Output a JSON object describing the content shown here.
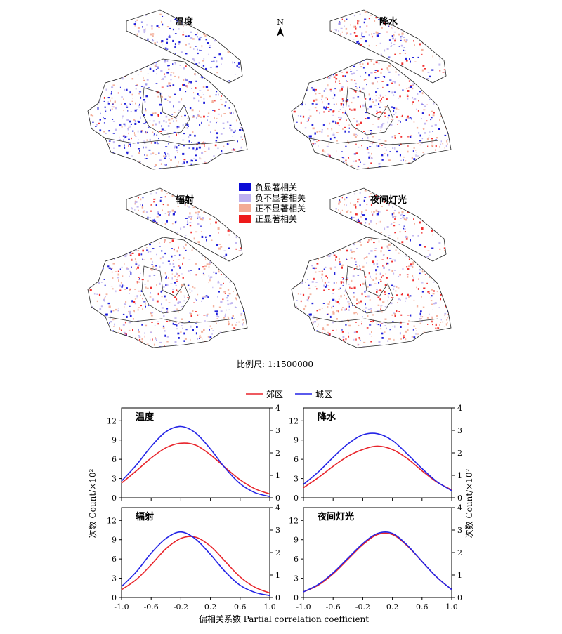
{
  "maps": {
    "panels": [
      {
        "title": "温度",
        "palette": [
          0.42,
          0.3,
          0.22,
          0.06
        ]
      },
      {
        "title": "降水",
        "palette": [
          0.26,
          0.24,
          0.26,
          0.24
        ]
      },
      {
        "title": "辐射",
        "palette": [
          0.22,
          0.28,
          0.36,
          0.14
        ]
      },
      {
        "title": "夜间灯光",
        "palette": [
          0.14,
          0.24,
          0.34,
          0.28
        ]
      }
    ],
    "north": "N",
    "legend": [
      {
        "label": "负显著相关",
        "color": "#0b0bd6"
      },
      {
        "label": "负不显著相关",
        "color": "#bdb0ef"
      },
      {
        "label": "正不显著相关",
        "color": "#f3ab95"
      },
      {
        "label": "正显著相关",
        "color": "#ee1a1a"
      }
    ],
    "scale": "比例尺: 1:1500000"
  },
  "chart_data": {
    "type": "line",
    "legend": [
      {
        "name": "郊区",
        "color": "#e8242b"
      },
      {
        "name": "城区",
        "color": "#2424e6"
      }
    ],
    "xlabel": "偏相关系数 Partial correlation coefficient",
    "ylabel_left": "次数 Count/×10²",
    "ylabel_right": "次数 Count/×10²",
    "x_ticks": [
      "-1.0",
      "-0.6",
      "-0.2",
      "0.2",
      "0.6",
      "1.0"
    ],
    "xlim": [
      -1.0,
      1.0
    ],
    "panels": [
      {
        "title": "温度",
        "ylim_left": [
          0,
          14
        ],
        "left_ticks": [
          "0",
          "3",
          "6",
          "9",
          "12"
        ],
        "ylim_right": [
          0,
          4
        ],
        "right_ticks": [
          "0",
          "1",
          "2",
          "3",
          "4"
        ],
        "x": [
          -1.0,
          -0.8,
          -0.6,
          -0.4,
          -0.2,
          0.0,
          0.2,
          0.4,
          0.6,
          0.8,
          1.0
        ],
        "series": [
          {
            "name": "郊区",
            "values": [
              2.3,
              4.2,
              6.2,
              7.8,
              8.5,
              8.2,
              6.7,
              4.7,
              2.8,
              1.4,
              0.6
            ]
          },
          {
            "name": "城区",
            "values": [
              2.6,
              5.1,
              8.0,
              10.3,
              11.1,
              10.1,
              7.6,
              4.6,
              2.2,
              0.8,
              0.2
            ]
          }
        ]
      },
      {
        "title": "降水",
        "ylim_left": [
          0,
          14
        ],
        "left_ticks": [
          "0",
          "3",
          "6",
          "9",
          "12"
        ],
        "ylim_right": [
          0,
          4
        ],
        "right_ticks": [
          "0",
          "1",
          "2",
          "3",
          "4"
        ],
        "x": [
          -1.0,
          -0.8,
          -0.6,
          -0.4,
          -0.2,
          0.0,
          0.2,
          0.4,
          0.6,
          0.8,
          1.0
        ],
        "series": [
          {
            "name": "郊区",
            "values": [
              0.45,
              0.9,
              1.4,
              1.85,
              2.15,
              2.3,
              2.15,
              1.75,
              1.2,
              0.7,
              0.35
            ]
          },
          {
            "name": "城区",
            "values": [
              0.6,
              1.15,
              1.8,
              2.4,
              2.8,
              2.85,
              2.55,
              1.95,
              1.3,
              0.72,
              0.32
            ]
          }
        ]
      },
      {
        "title": "辐射",
        "ylim_left": [
          0,
          14
        ],
        "left_ticks": [
          "0",
          "3",
          "6",
          "9",
          "12"
        ],
        "ylim_right": [
          0,
          4
        ],
        "right_ticks": [
          "0",
          "1",
          "2",
          "3",
          "4"
        ],
        "x": [
          -1.0,
          -0.8,
          -0.6,
          -0.4,
          -0.2,
          0.0,
          0.2,
          0.4,
          0.6,
          0.8,
          1.0
        ],
        "series": [
          {
            "name": "郊区",
            "values": [
              1.2,
              2.8,
              5.1,
              7.6,
              9.2,
              9.4,
              8.0,
              5.6,
              3.2,
              1.6,
              0.7
            ]
          },
          {
            "name": "城区",
            "values": [
              1.7,
              4.0,
              6.9,
              9.2,
              10.2,
              9.1,
              6.7,
              4.0,
              1.9,
              0.8,
              0.3
            ]
          }
        ]
      },
      {
        "title": "夜间灯光",
        "ylim_left": [
          0,
          14
        ],
        "left_ticks": [
          "0",
          "3",
          "6",
          "9",
          "12"
        ],
        "ylim_right": [
          0,
          4
        ],
        "right_ticks": [
          "0",
          "1",
          "2",
          "3",
          "4"
        ],
        "x": [
          -1.0,
          -0.8,
          -0.6,
          -0.4,
          -0.2,
          0.0,
          0.2,
          0.4,
          0.6,
          0.8,
          1.0
        ],
        "series": [
          {
            "name": "郊区",
            "values": [
              0.25,
              0.55,
              1.05,
              1.7,
              2.35,
              2.8,
              2.8,
              2.3,
              1.6,
              0.9,
              0.35
            ]
          },
          {
            "name": "城区",
            "values": [
              0.25,
              0.58,
              1.1,
              1.75,
              2.4,
              2.85,
              2.85,
              2.33,
              1.6,
              0.9,
              0.35
            ]
          }
        ]
      }
    ]
  }
}
